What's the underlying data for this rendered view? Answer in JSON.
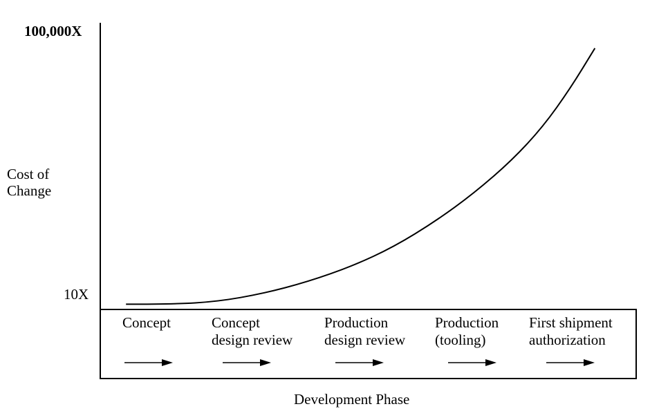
{
  "chart_data": {
    "type": "line",
    "title": "",
    "ylabel": "Cost of Change",
    "xlabel": "Development Phase",
    "y_scale": "log10",
    "ylim_log10": [
      1,
      5
    ],
    "y_ticks": [
      {
        "label": "10X",
        "log10": 1
      },
      {
        "label": "100,000X",
        "log10": 5
      }
    ],
    "xlim": [
      0,
      100
    ],
    "phases": [
      {
        "line1": "Concept",
        "line2": ""
      },
      {
        "line1": "Concept",
        "line2": "design review"
      },
      {
        "line1": "Production",
        "line2": "design review"
      },
      {
        "line1": "Production",
        "line2": "(tooling)"
      },
      {
        "line1": "First shipment",
        "line2": "authorization"
      }
    ],
    "series": [
      {
        "name": "Cost of Change",
        "x": [
          4.8,
          13.5,
          21.9,
          30.3,
          38.7,
          47.1,
          54.8,
          62.6,
          69.7,
          76.8,
          82.6,
          87.7,
          92.3
        ],
        "y_log10": [
          0.86,
          0.86,
          0.9,
          1.02,
          1.2,
          1.44,
          1.73,
          2.12,
          2.54,
          3.04,
          3.55,
          4.13,
          4.74
        ]
      }
    ],
    "grid": false,
    "legend": "none"
  }
}
